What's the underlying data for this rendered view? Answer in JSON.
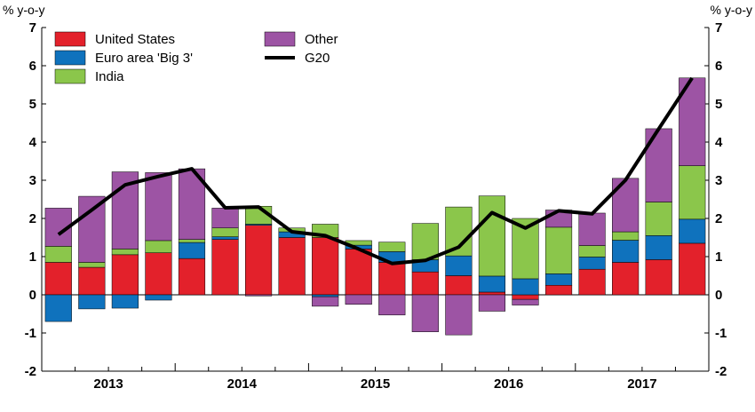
{
  "chart_data": {
    "type": "bar",
    "stacked": true,
    "y_unit_label_left": "% y-o-y",
    "y_unit_label_right": "% y-o-y",
    "ylim": [
      -2,
      7
    ],
    "yticks": [
      -2,
      -1,
      0,
      1,
      2,
      3,
      4,
      5,
      6,
      7
    ],
    "year_labels": [
      "2013",
      "2014",
      "2015",
      "2016",
      "2017"
    ],
    "quarters_per_year": 4,
    "grid": false,
    "legend_position": "top-left",
    "series": [
      {
        "name": "United States",
        "color": "#e3212b",
        "values": [
          0.85,
          0.72,
          1.05,
          1.1,
          0.95,
          1.45,
          1.82,
          1.5,
          1.5,
          1.2,
          0.85,
          0.6,
          0.5,
          0.07,
          -0.12,
          0.25,
          0.67,
          0.85,
          0.92,
          1.35
        ]
      },
      {
        "name": "Euro area 'Big 3'",
        "color": "#0f72bd",
        "values": [
          -0.7,
          -0.37,
          -0.35,
          -0.14,
          0.42,
          0.07,
          0.03,
          0.15,
          -0.05,
          0.1,
          0.28,
          0.32,
          0.52,
          0.42,
          0.42,
          0.3,
          0.32,
          0.58,
          0.63,
          0.63
        ]
      },
      {
        "name": "India",
        "color": "#8bc64b",
        "values": [
          0.42,
          0.13,
          0.15,
          0.32,
          0.08,
          0.23,
          0.47,
          0.1,
          0.35,
          0.12,
          0.25,
          0.95,
          1.28,
          2.1,
          1.58,
          1.22,
          0.3,
          0.22,
          0.88,
          1.4
        ]
      },
      {
        "name": "Other",
        "color": "#9d54a4",
        "values": [
          1.0,
          1.73,
          2.02,
          1.78,
          1.85,
          0.52,
          -0.03,
          0.0,
          -0.25,
          -0.25,
          -0.53,
          -0.97,
          -1.05,
          -0.43,
          -0.15,
          0.45,
          0.85,
          1.4,
          1.92,
          2.3
        ]
      },
      {
        "name": "G20",
        "color": "#000000",
        "kind": "line",
        "values": [
          1.58,
          2.22,
          2.88,
          3.1,
          3.3,
          2.28,
          2.3,
          1.65,
          1.55,
          1.2,
          0.82,
          0.9,
          1.25,
          2.15,
          1.75,
          2.2,
          2.12,
          3.0,
          4.35,
          5.68
        ]
      }
    ],
    "legend_order": [
      "United States",
      "Other",
      "Euro area 'Big 3'",
      "G20",
      "India"
    ]
  }
}
